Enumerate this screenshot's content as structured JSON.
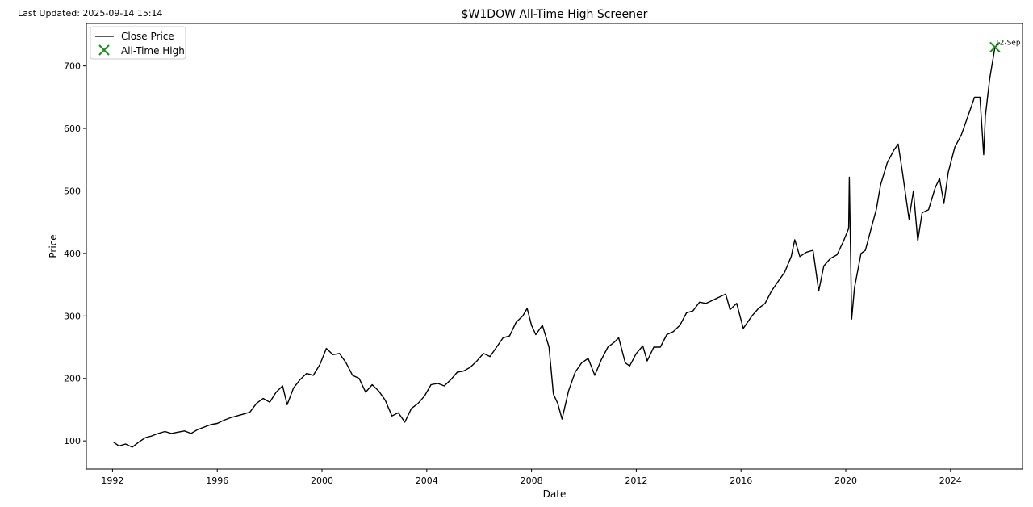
{
  "header": {
    "last_updated": "Last Updated: 2025-09-14 15:14"
  },
  "chart_data": {
    "type": "line",
    "title": "$W1DOW All-Time High Screener",
    "xlabel": "Date",
    "ylabel": "Price",
    "xlim": [
      "1991-01-01",
      "2026-10-01"
    ],
    "ylim": [
      55,
      768
    ],
    "x_ticks": [
      "1992",
      "1996",
      "2000",
      "2004",
      "2008",
      "2012",
      "2016",
      "2020",
      "2024"
    ],
    "y_ticks": [
      100,
      200,
      300,
      400,
      500,
      600,
      700
    ],
    "grid": false,
    "legend_position": "top-left",
    "legend": [
      "Close Price",
      "All-Time High"
    ],
    "colors": {
      "line": "#000000",
      "marker": "#1a8c1a"
    },
    "series": [
      {
        "name": "Close Price",
        "points": [
          [
            "1992-01-15",
            98
          ],
          [
            "1992-04-01",
            92
          ],
          [
            "1992-07-01",
            95
          ],
          [
            "1992-10-01",
            90
          ],
          [
            "1993-01-01",
            98
          ],
          [
            "1993-04-01",
            105
          ],
          [
            "1993-07-01",
            108
          ],
          [
            "1993-10-01",
            112
          ],
          [
            "1994-01-01",
            115
          ],
          [
            "1994-04-01",
            112
          ],
          [
            "1994-07-01",
            114
          ],
          [
            "1994-10-01",
            116
          ],
          [
            "1995-01-01",
            112
          ],
          [
            "1995-04-01",
            118
          ],
          [
            "1995-07-01",
            122
          ],
          [
            "1995-10-01",
            126
          ],
          [
            "1996-01-01",
            128
          ],
          [
            "1996-04-01",
            133
          ],
          [
            "1996-07-01",
            137
          ],
          [
            "1996-10-01",
            140
          ],
          [
            "1997-01-01",
            143
          ],
          [
            "1997-04-01",
            146
          ],
          [
            "1997-07-01",
            160
          ],
          [
            "1997-10-01",
            168
          ],
          [
            "1998-01-01",
            162
          ],
          [
            "1998-04-01",
            178
          ],
          [
            "1998-07-01",
            188
          ],
          [
            "1998-09-01",
            158
          ],
          [
            "1998-12-01",
            185
          ],
          [
            "1999-03-01",
            198
          ],
          [
            "1999-06-01",
            208
          ],
          [
            "1999-09-01",
            205
          ],
          [
            "1999-12-01",
            222
          ],
          [
            "2000-03-01",
            248
          ],
          [
            "2000-06-01",
            238
          ],
          [
            "2000-09-01",
            240
          ],
          [
            "2000-12-01",
            225
          ],
          [
            "2001-03-01",
            205
          ],
          [
            "2001-06-01",
            200
          ],
          [
            "2001-09-01",
            178
          ],
          [
            "2001-12-01",
            190
          ],
          [
            "2002-03-01",
            180
          ],
          [
            "2002-06-01",
            165
          ],
          [
            "2002-09-01",
            140
          ],
          [
            "2002-12-01",
            145
          ],
          [
            "2003-03-01",
            130
          ],
          [
            "2003-06-01",
            152
          ],
          [
            "2003-09-01",
            160
          ],
          [
            "2003-12-01",
            172
          ],
          [
            "2004-03-01",
            190
          ],
          [
            "2004-06-01",
            192
          ],
          [
            "2004-09-01",
            188
          ],
          [
            "2004-12-01",
            198
          ],
          [
            "2005-03-01",
            210
          ],
          [
            "2005-06-01",
            212
          ],
          [
            "2005-09-01",
            218
          ],
          [
            "2005-12-01",
            228
          ],
          [
            "2006-03-01",
            240
          ],
          [
            "2006-06-01",
            235
          ],
          [
            "2006-09-01",
            250
          ],
          [
            "2006-12-01",
            265
          ],
          [
            "2007-03-01",
            268
          ],
          [
            "2007-06-01",
            290
          ],
          [
            "2007-09-01",
            300
          ],
          [
            "2007-11-01",
            312
          ],
          [
            "2008-01-01",
            285
          ],
          [
            "2008-03-01",
            270
          ],
          [
            "2008-06-01",
            285
          ],
          [
            "2008-09-01",
            250
          ],
          [
            "2008-11-01",
            175
          ],
          [
            "2009-01-01",
            160
          ],
          [
            "2009-03-01",
            135
          ],
          [
            "2009-06-01",
            180
          ],
          [
            "2009-09-01",
            210
          ],
          [
            "2009-12-01",
            225
          ],
          [
            "2010-03-01",
            232
          ],
          [
            "2010-06-01",
            205
          ],
          [
            "2010-09-01",
            230
          ],
          [
            "2010-12-01",
            250
          ],
          [
            "2011-03-01",
            258
          ],
          [
            "2011-05-01",
            265
          ],
          [
            "2011-08-01",
            225
          ],
          [
            "2011-10-01",
            220
          ],
          [
            "2012-01-01",
            240
          ],
          [
            "2012-04-01",
            252
          ],
          [
            "2012-06-01",
            228
          ],
          [
            "2012-09-01",
            250
          ],
          [
            "2012-12-01",
            250
          ],
          [
            "2013-03-01",
            270
          ],
          [
            "2013-06-01",
            275
          ],
          [
            "2013-09-01",
            285
          ],
          [
            "2013-12-01",
            305
          ],
          [
            "2014-03-01",
            308
          ],
          [
            "2014-06-01",
            322
          ],
          [
            "2014-09-01",
            320
          ],
          [
            "2014-12-01",
            325
          ],
          [
            "2015-03-01",
            330
          ],
          [
            "2015-06-01",
            335
          ],
          [
            "2015-08-01",
            310
          ],
          [
            "2015-11-01",
            320
          ],
          [
            "2016-02-01",
            280
          ],
          [
            "2016-06-01",
            300
          ],
          [
            "2016-09-01",
            312
          ],
          [
            "2016-12-01",
            320
          ],
          [
            "2017-03-01",
            340
          ],
          [
            "2017-06-01",
            355
          ],
          [
            "2017-09-01",
            370
          ],
          [
            "2017-12-01",
            395
          ],
          [
            "2018-01-20",
            422
          ],
          [
            "2018-04-01",
            395
          ],
          [
            "2018-07-01",
            402
          ],
          [
            "2018-10-01",
            405
          ],
          [
            "2018-12-20",
            340
          ],
          [
            "2019-03-01",
            380
          ],
          [
            "2019-06-01",
            392
          ],
          [
            "2019-09-01",
            398
          ],
          [
            "2019-12-01",
            420
          ],
          [
            "2020-02-10",
            440
          ],
          [
            "2020-02-20",
            522
          ],
          [
            "2020-03-23",
            295
          ],
          [
            "2020-05-01",
            345
          ],
          [
            "2020-08-01",
            400
          ],
          [
            "2020-10-01",
            405
          ],
          [
            "2021-01-01",
            445
          ],
          [
            "2021-03-01",
            470
          ],
          [
            "2021-05-01",
            510
          ],
          [
            "2021-08-01",
            545
          ],
          [
            "2021-11-01",
            565
          ],
          [
            "2022-01-01",
            575
          ],
          [
            "2022-03-01",
            530
          ],
          [
            "2022-06-01",
            455
          ],
          [
            "2022-08-01",
            500
          ],
          [
            "2022-10-01",
            420
          ],
          [
            "2022-12-01",
            465
          ],
          [
            "2023-03-01",
            470
          ],
          [
            "2023-06-01",
            505
          ],
          [
            "2023-08-01",
            520
          ],
          [
            "2023-10-01",
            480
          ],
          [
            "2023-12-01",
            530
          ],
          [
            "2024-03-01",
            570
          ],
          [
            "2024-06-01",
            590
          ],
          [
            "2024-09-01",
            620
          ],
          [
            "2024-12-01",
            650
          ],
          [
            "2025-02-15",
            650
          ],
          [
            "2025-04-08",
            558
          ],
          [
            "2025-05-01",
            620
          ],
          [
            "2025-07-01",
            680
          ],
          [
            "2025-09-12",
            730
          ]
        ]
      }
    ],
    "all_time_high": {
      "date": "2025-09-12",
      "value": 730,
      "label": "12-Sep"
    }
  }
}
